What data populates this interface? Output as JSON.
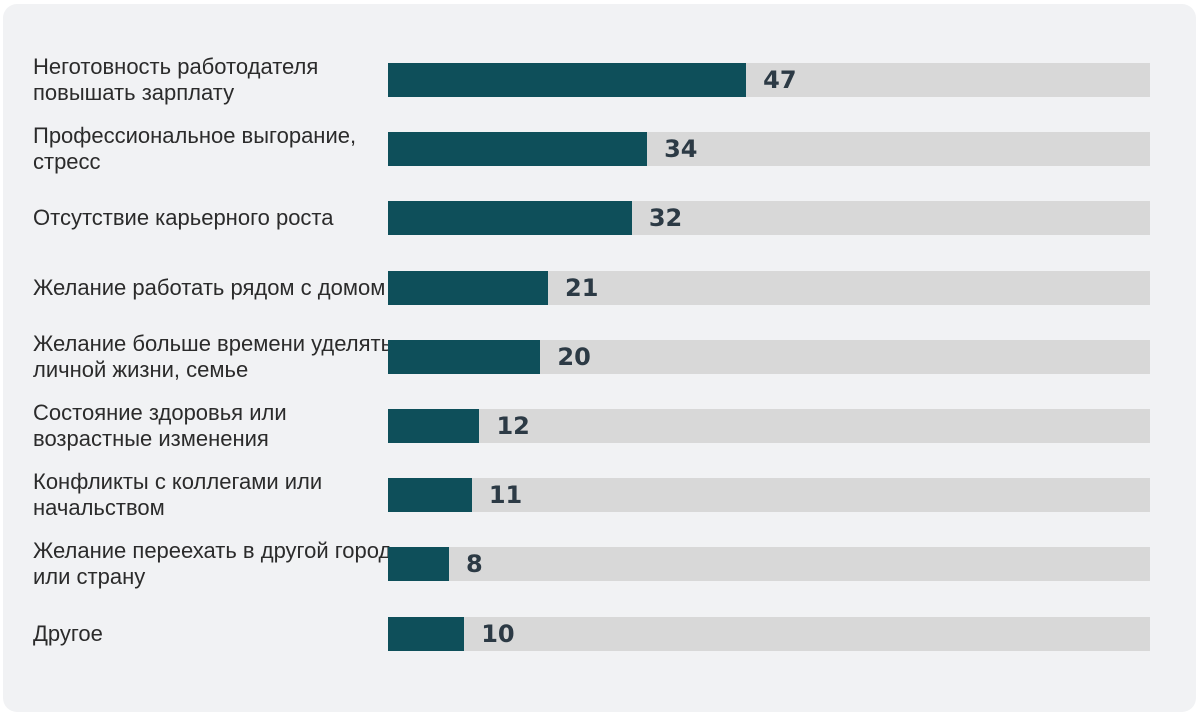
{
  "chart_data": {
    "type": "bar",
    "orientation": "horizontal",
    "title": "",
    "xlabel": "",
    "ylabel": "",
    "xlim": [
      0,
      100
    ],
    "categories": [
      "Неготовность работодателя повышать зарплату",
      "Профессиональное выгорание, стресс",
      "Отсутствие карьерного роста",
      "Желание работать рядом с домом",
      "Желание больше времени уделять личной жизни, семье",
      "Состояние здоровья или возрастные изменения",
      "Конфликты с коллегами или начальством",
      "Желание переехать в другой город или страну",
      "Другое"
    ],
    "values": [
      47,
      34,
      32,
      21,
      20,
      12,
      11,
      8,
      10
    ],
    "colors": {
      "bar": "#0e4f5a",
      "track": "#d8d8d8",
      "value_text": "#2c3a45",
      "label_text": "#2b2b2b",
      "background": "#f1f2f4"
    }
  }
}
